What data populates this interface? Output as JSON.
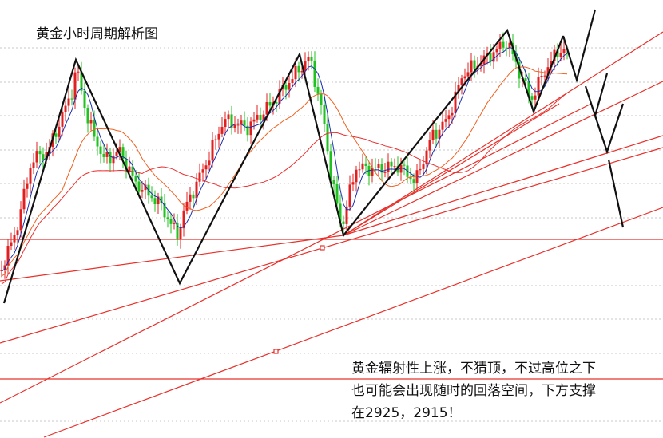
{
  "header": {
    "title": "黄金小时周期解析图"
  },
  "annotation": {
    "lines": [
      "黄金辐射性上涨，不猜顶，不过高位之下",
      "也可能会出现随时的回落空间，下方支撑",
      "在2925，2915！"
    ]
  }
}
